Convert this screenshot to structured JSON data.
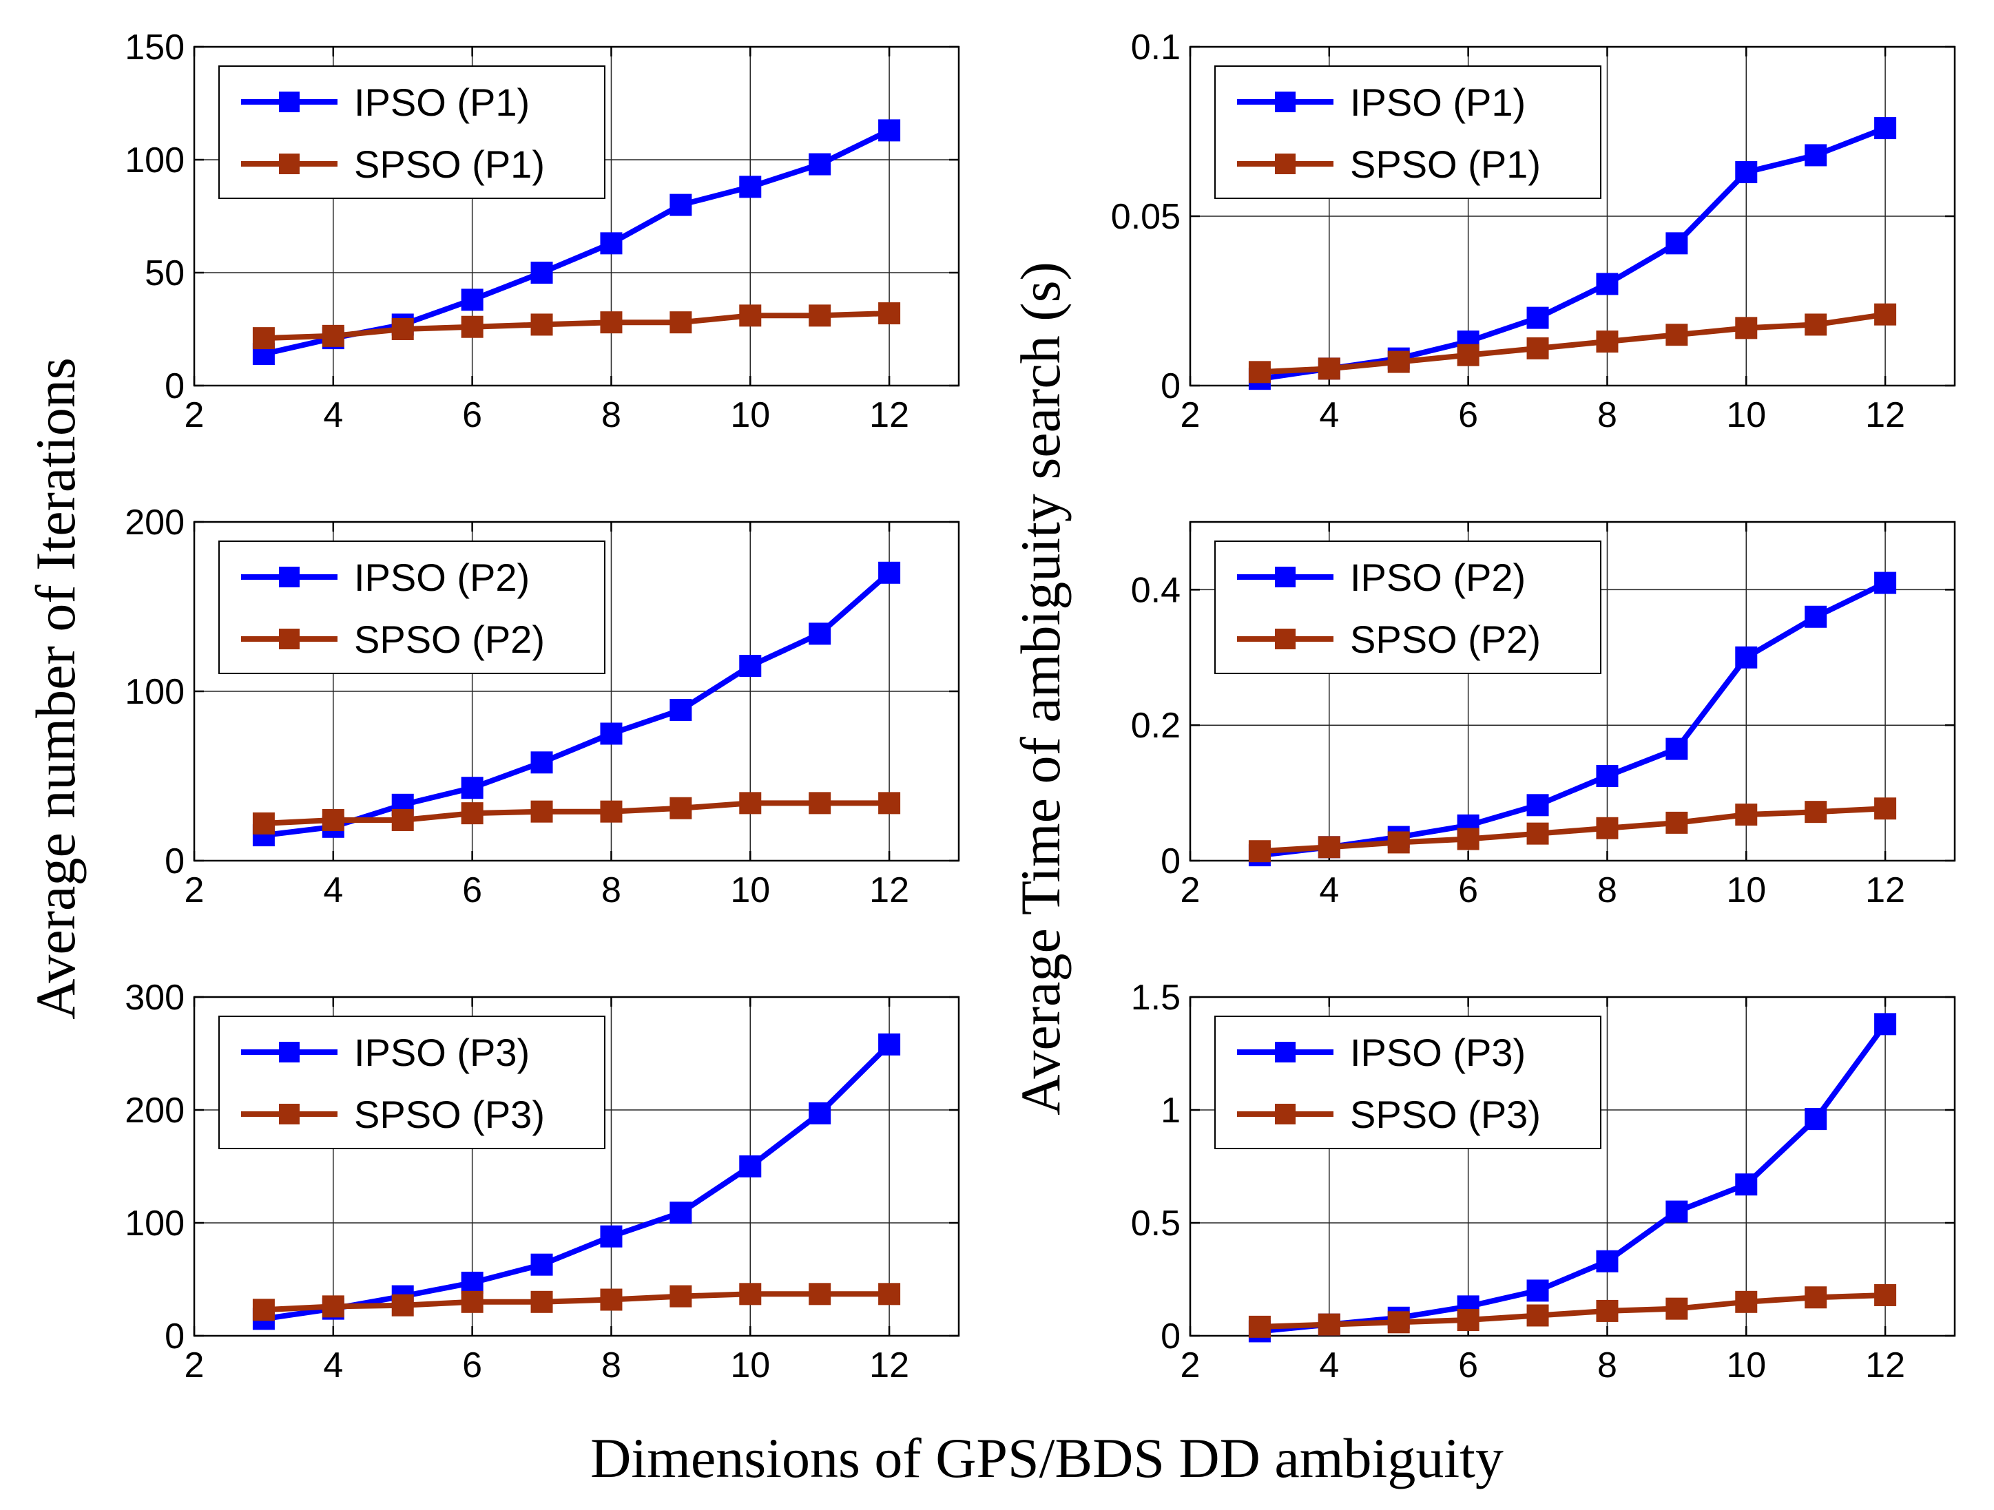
{
  "figure": {
    "ylabel_left": "Average number of Iterations",
    "ylabel_right": "Average Time of ambiguity search (s)",
    "xlabel": "Dimensions of GPS/BDS DD ambiguity"
  },
  "colors": {
    "ipso": "#0000ff",
    "spso": "#a0300a",
    "grid": "#262626",
    "axis": "#000000"
  },
  "chart_data": [
    {
      "type": "line",
      "panel": "iterations-P1",
      "grid": true,
      "legend_position": "top-left",
      "xlim": [
        2,
        13
      ],
      "ylim": [
        0,
        150
      ],
      "xticks": [
        "2",
        "4",
        "6",
        "8",
        "10",
        "12"
      ],
      "yticks": [
        "0",
        "50",
        "100",
        "150"
      ],
      "x": [
        3,
        4,
        5,
        6,
        7,
        8,
        9,
        10,
        11,
        12
      ],
      "series": [
        {
          "name": "IPSO (P1)",
          "values": [
            14,
            21,
            27,
            38,
            50,
            63,
            80,
            88,
            98,
            113
          ]
        },
        {
          "name": "SPSO (P1)",
          "values": [
            21,
            22,
            25,
            26,
            27,
            28,
            28,
            31,
            31,
            32
          ]
        }
      ]
    },
    {
      "type": "line",
      "panel": "time-P1",
      "grid": true,
      "legend_position": "top-left",
      "xlim": [
        2,
        13
      ],
      "ylim": [
        0,
        0.1
      ],
      "xticks": [
        "2",
        "4",
        "6",
        "8",
        "10",
        "12"
      ],
      "yticks": [
        "0",
        "0.05",
        "0.1"
      ],
      "x": [
        3,
        4,
        5,
        6,
        7,
        8,
        9,
        10,
        11,
        12
      ],
      "series": [
        {
          "name": "IPSO (P1)",
          "values": [
            0.002,
            0.005,
            0.008,
            0.013,
            0.02,
            0.03,
            0.042,
            0.063,
            0.068,
            0.076
          ]
        },
        {
          "name": "SPSO (P1)",
          "values": [
            0.004,
            0.005,
            0.007,
            0.009,
            0.011,
            0.013,
            0.015,
            0.017,
            0.018,
            0.021
          ]
        }
      ]
    },
    {
      "type": "line",
      "panel": "iterations-P2",
      "grid": true,
      "legend_position": "top-left",
      "xlim": [
        2,
        13
      ],
      "ylim": [
        0,
        200
      ],
      "xticks": [
        "2",
        "4",
        "6",
        "8",
        "10",
        "12"
      ],
      "yticks": [
        "0",
        "100",
        "200"
      ],
      "x": [
        3,
        4,
        5,
        6,
        7,
        8,
        9,
        10,
        11,
        12
      ],
      "series": [
        {
          "name": "IPSO (P2)",
          "values": [
            15,
            20,
            33,
            43,
            58,
            75,
            89,
            115,
            134,
            170
          ]
        },
        {
          "name": "SPSO (P2)",
          "values": [
            22,
            24,
            24,
            28,
            29,
            29,
            31,
            34,
            34,
            34
          ]
        }
      ]
    },
    {
      "type": "line",
      "panel": "time-P2",
      "grid": true,
      "legend_position": "top-left",
      "xlim": [
        2,
        13
      ],
      "ylim": [
        0,
        0.5
      ],
      "xticks": [
        "2",
        "4",
        "6",
        "8",
        "10",
        "12"
      ],
      "yticks": [
        "0",
        "0.2",
        "0.4"
      ],
      "x": [
        3,
        4,
        5,
        6,
        7,
        8,
        9,
        10,
        11,
        12
      ],
      "series": [
        {
          "name": "IPSO (P2)",
          "values": [
            0.008,
            0.02,
            0.035,
            0.052,
            0.082,
            0.125,
            0.165,
            0.3,
            0.36,
            0.41
          ]
        },
        {
          "name": "SPSO (P2)",
          "values": [
            0.014,
            0.02,
            0.027,
            0.032,
            0.04,
            0.048,
            0.056,
            0.068,
            0.072,
            0.077
          ]
        }
      ]
    },
    {
      "type": "line",
      "panel": "iterations-P3",
      "grid": true,
      "legend_position": "top-left",
      "xlim": [
        2,
        13
      ],
      "ylim": [
        0,
        300
      ],
      "xticks": [
        "2",
        "4",
        "6",
        "8",
        "10",
        "12"
      ],
      "yticks": [
        "0",
        "100",
        "200",
        "300"
      ],
      "x": [
        3,
        4,
        5,
        6,
        7,
        8,
        9,
        10,
        11,
        12
      ],
      "series": [
        {
          "name": "IPSO (P3)",
          "values": [
            15,
            24,
            35,
            47,
            63,
            88,
            109,
            150,
            197,
            258
          ]
        },
        {
          "name": "SPSO (P3)",
          "values": [
            23,
            26,
            27,
            30,
            30,
            32,
            35,
            37,
            37,
            37
          ]
        }
      ]
    },
    {
      "type": "line",
      "panel": "time-P3",
      "grid": true,
      "legend_position": "top-left",
      "xlim": [
        2,
        13
      ],
      "ylim": [
        0,
        1.5
      ],
      "xticks": [
        "2",
        "4",
        "6",
        "8",
        "10",
        "12"
      ],
      "yticks": [
        "0",
        "0.5",
        "1",
        "1.5"
      ],
      "x": [
        3,
        4,
        5,
        6,
        7,
        8,
        9,
        10,
        11,
        12
      ],
      "series": [
        {
          "name": "IPSO (P3)",
          "values": [
            0.02,
            0.05,
            0.08,
            0.13,
            0.2,
            0.33,
            0.55,
            0.67,
            0.96,
            1.38
          ]
        },
        {
          "name": "SPSO (P3)",
          "values": [
            0.04,
            0.05,
            0.06,
            0.07,
            0.09,
            0.11,
            0.12,
            0.15,
            0.17,
            0.18
          ]
        }
      ]
    }
  ]
}
